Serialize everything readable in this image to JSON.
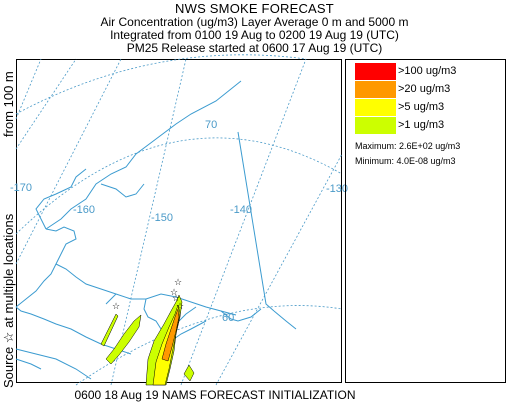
{
  "header": {
    "title": "NWS SMOKE FORECAST",
    "line2": "Air Concentration (ug/m3) Layer Average    0 m  and  5000 m",
    "line3": "Integrated from 0100 19 Aug to 0200 19 Aug 19 (UTC)",
    "line4": "PM25 Release started at 0600 17 Aug 19 (UTC)"
  },
  "side": {
    "source_label": "Source ☆  at multiple locations",
    "from_label": "from   100 m"
  },
  "map": {
    "longitude_labels": [
      "-170",
      "-160",
      "-150",
      "-140",
      "-130"
    ],
    "latitude_labels": [
      "70",
      "60"
    ]
  },
  "legend": {
    "items": [
      {
        "label": ">100 ug/m3",
        "color": "#ff0000"
      },
      {
        "label": ">20 ug/m3",
        "color": "#ff9900"
      },
      {
        "label": ">5 ug/m3",
        "color": "#ffff00"
      },
      {
        "label": ">1 ug/m3",
        "color": "#ccff00"
      }
    ],
    "maximum": "Maximum: 2.6E+02 ug/m3",
    "minimum": "Minimum: 4.0E-08 ug/m3"
  },
  "footer": "0600 18 Aug 19 NAMS FORECAST INITIALIZATION",
  "colors": {
    "grid": "#4a9ac8",
    "coast": "#3b9bd0"
  }
}
